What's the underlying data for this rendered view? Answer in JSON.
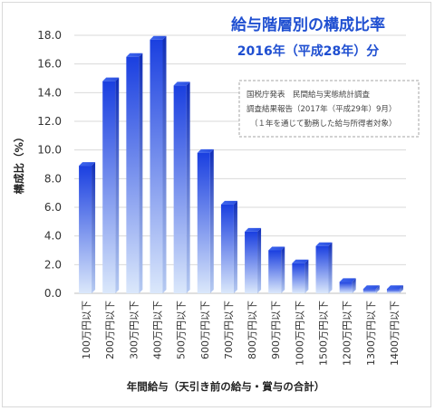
{
  "chart_data": {
    "type": "bar",
    "title": "給与階層別の構成比率",
    "subtitle": "2016年（平成28年）分",
    "note_lines": [
      "国税庁発表　民間給与実態統計調査",
      "調査結果報告（2017年（平成29年）9月）",
      "（１年を通じて勤務した給与所得者対象）"
    ],
    "xlabel": "年間給与（天引き前の給与・賞与の合計）",
    "ylabel": "構成比（%）",
    "categories": [
      "100万円以下",
      "200万円以下",
      "300万円以下",
      "400万円以下",
      "500万円以下",
      "600万円以下",
      "700万円以下",
      "800万円以下",
      "900万円以下",
      "1000万円以下",
      "1500万円以下",
      "1200万円以下",
      "1300万円以下",
      "1400万円以下"
    ],
    "values": [
      8.9,
      14.8,
      16.5,
      17.7,
      14.5,
      9.8,
      6.2,
      4.3,
      3.0,
      2.1,
      3.3,
      0.8,
      0.3,
      0.3
    ],
    "ylim": [
      0,
      18
    ],
    "yticks": [
      "0.0",
      "2.0",
      "4.0",
      "6.0",
      "8.0",
      "10.0",
      "12.0",
      "14.0",
      "16.0",
      "18.0"
    ],
    "grid": true,
    "colors": {
      "bar_top": "#1a3fe0",
      "bar_bottom": "#dbe8fb",
      "grid": "#d9d9d9",
      "title": "#1f4fd1"
    }
  }
}
